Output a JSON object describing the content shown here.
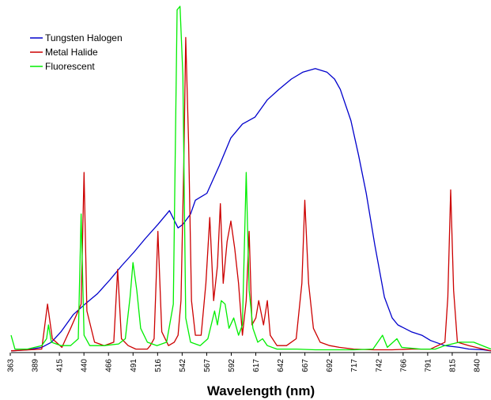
{
  "chart_data": {
    "type": "line",
    "title": "",
    "xlabel": "Wavelength (nm)",
    "ylabel": "",
    "xlim": [
      363,
      863
    ],
    "ylim": [
      0,
      100
    ],
    "grid": false,
    "legend_position": "top-left",
    "x_ticks": [
      "363",
      "389",
      "415",
      "440",
      "466",
      "491",
      "516",
      "542",
      "567",
      "592",
      "617",
      "642",
      "667",
      "692",
      "717",
      "742",
      "766",
      "791",
      "815",
      "840"
    ],
    "series": [
      {
        "name": "Tungsten Halogen",
        "color": "#0000cc",
        "points": [
          [
            363,
            0.5
          ],
          [
            380,
            0.8
          ],
          [
            395,
            1.5
          ],
          [
            405,
            3
          ],
          [
            415,
            6
          ],
          [
            428,
            11
          ],
          [
            440,
            14
          ],
          [
            453,
            17
          ],
          [
            466,
            21
          ],
          [
            478,
            25
          ],
          [
            491,
            29
          ],
          [
            503,
            33
          ],
          [
            516,
            37
          ],
          [
            528,
            41
          ],
          [
            537,
            36
          ],
          [
            542,
            37
          ],
          [
            550,
            40
          ],
          [
            555,
            44
          ],
          [
            567,
            46
          ],
          [
            580,
            54
          ],
          [
            592,
            62
          ],
          [
            604,
            66
          ],
          [
            617,
            68
          ],
          [
            630,
            73
          ],
          [
            642,
            76
          ],
          [
            655,
            79
          ],
          [
            667,
            81
          ],
          [
            680,
            82
          ],
          [
            692,
            81
          ],
          [
            700,
            79
          ],
          [
            706,
            76
          ],
          [
            717,
            67
          ],
          [
            725,
            57
          ],
          [
            733,
            46
          ],
          [
            742,
            31
          ],
          [
            752,
            16
          ],
          [
            760,
            10
          ],
          [
            766,
            8
          ],
          [
            780,
            6
          ],
          [
            791,
            5
          ],
          [
            800,
            3.5
          ],
          [
            815,
            2
          ],
          [
            830,
            1.5
          ],
          [
            840,
            1
          ],
          [
            855,
            0.8
          ],
          [
            863,
            0.5
          ]
        ]
      },
      {
        "name": "Metal Halide",
        "color": "#cc0000",
        "points": [
          [
            363,
            0.5
          ],
          [
            395,
            1
          ],
          [
            401,
            14
          ],
          [
            406,
            4
          ],
          [
            416,
            1.5
          ],
          [
            425,
            7
          ],
          [
            436,
            14
          ],
          [
            439,
            52
          ],
          [
            442,
            12
          ],
          [
            450,
            3
          ],
          [
            460,
            2
          ],
          [
            470,
            3
          ],
          [
            474,
            24
          ],
          [
            478,
            4
          ],
          [
            485,
            2
          ],
          [
            493,
            1
          ],
          [
            505,
            1
          ],
          [
            508,
            2
          ],
          [
            512,
            4
          ],
          [
            516,
            35
          ],
          [
            520,
            6
          ],
          [
            527,
            2
          ],
          [
            533,
            3
          ],
          [
            537,
            5
          ],
          [
            540,
            15
          ],
          [
            543,
            55
          ],
          [
            545,
            91
          ],
          [
            548,
            60
          ],
          [
            551,
            15
          ],
          [
            555,
            5
          ],
          [
            561,
            5
          ],
          [
            566,
            20
          ],
          [
            570,
            39
          ],
          [
            574,
            15
          ],
          [
            578,
            25
          ],
          [
            581,
            43
          ],
          [
            584,
            20
          ],
          [
            588,
            32
          ],
          [
            592,
            38
          ],
          [
            596,
            30
          ],
          [
            600,
            20
          ],
          [
            604,
            5
          ],
          [
            608,
            15
          ],
          [
            611,
            35
          ],
          [
            614,
            8
          ],
          [
            618,
            10
          ],
          [
            621,
            15
          ],
          [
            626,
            8
          ],
          [
            630,
            15
          ],
          [
            633,
            5
          ],
          [
            640,
            2
          ],
          [
            650,
            2
          ],
          [
            660,
            4
          ],
          [
            666,
            20
          ],
          [
            669,
            44
          ],
          [
            673,
            20
          ],
          [
            678,
            7
          ],
          [
            685,
            3
          ],
          [
            695,
            2
          ],
          [
            705,
            1.5
          ],
          [
            720,
            1
          ],
          [
            740,
            0.8
          ],
          [
            760,
            0.8
          ],
          [
            780,
            1
          ],
          [
            800,
            1
          ],
          [
            815,
            3
          ],
          [
            818,
            16
          ],
          [
            821,
            47
          ],
          [
            824,
            18
          ],
          [
            828,
            3
          ],
          [
            840,
            2
          ],
          [
            855,
            1
          ],
          [
            863,
            0.5
          ]
        ]
      },
      {
        "name": "Fluorescent",
        "color": "#00ee00",
        "points": [
          [
            363,
            5
          ],
          [
            367,
            1
          ],
          [
            380,
            1
          ],
          [
            395,
            2
          ],
          [
            400,
            4
          ],
          [
            402,
            8
          ],
          [
            405,
            3
          ],
          [
            415,
            2
          ],
          [
            425,
            2
          ],
          [
            433,
            4
          ],
          [
            436,
            40
          ],
          [
            439,
            5
          ],
          [
            445,
            2
          ],
          [
            460,
            2
          ],
          [
            475,
            2.5
          ],
          [
            482,
            4
          ],
          [
            487,
            16
          ],
          [
            490,
            26
          ],
          [
            494,
            18
          ],
          [
            498,
            7
          ],
          [
            505,
            3
          ],
          [
            515,
            2
          ],
          [
            525,
            3
          ],
          [
            532,
            14
          ],
          [
            536,
            99
          ],
          [
            539,
            100
          ],
          [
            542,
            80
          ],
          [
            545,
            10
          ],
          [
            550,
            3
          ],
          [
            560,
            2
          ],
          [
            568,
            4
          ],
          [
            575,
            12
          ],
          [
            578,
            8
          ],
          [
            582,
            15
          ],
          [
            586,
            14
          ],
          [
            590,
            7
          ],
          [
            595,
            10
          ],
          [
            600,
            5
          ],
          [
            604,
            8
          ],
          [
            606,
            30
          ],
          [
            608,
            52
          ],
          [
            611,
            18
          ],
          [
            615,
            7
          ],
          [
            620,
            3
          ],
          [
            625,
            4
          ],
          [
            630,
            2
          ],
          [
            640,
            1
          ],
          [
            660,
            1
          ],
          [
            680,
            0.8
          ],
          [
            700,
            0.8
          ],
          [
            720,
            0.8
          ],
          [
            740,
            1
          ],
          [
            750,
            5
          ],
          [
            755,
            1.5
          ],
          [
            765,
            4
          ],
          [
            770,
            1.5
          ],
          [
            790,
            1
          ],
          [
            805,
            1
          ],
          [
            815,
            2
          ],
          [
            830,
            3
          ],
          [
            845,
            3
          ],
          [
            863,
            1
          ]
        ]
      }
    ]
  }
}
